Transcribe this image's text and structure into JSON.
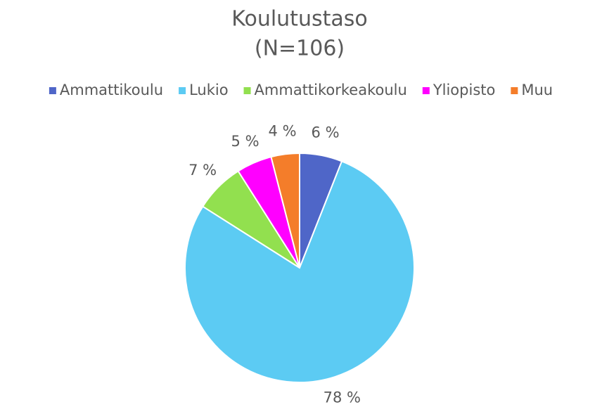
{
  "chart_data": {
    "type": "pie",
    "title": "Koulutustaso",
    "subtitle": "(N=106)",
    "categories": [
      "Ammattikoulu",
      "Lukio",
      "Ammattikorkeakoulu",
      "Yliopisto",
      "Muu"
    ],
    "values": [
      6,
      78,
      7,
      5,
      4
    ],
    "value_labels": [
      "6 %",
      "78 %",
      "7 %",
      "5 %",
      "4 %"
    ],
    "colors": [
      "#4f66c8",
      "#5ccbf3",
      "#92e04f",
      "#ff00ff",
      "#f47d2a"
    ],
    "legend": "top"
  }
}
